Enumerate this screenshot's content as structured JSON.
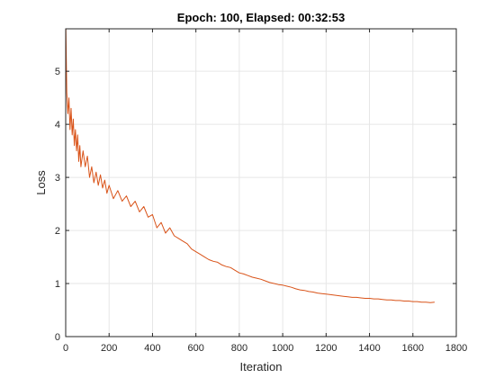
{
  "chart_data": {
    "type": "line",
    "title": "Epoch: 100, Elapsed: 00:32:53",
    "xlabel": "Iteration",
    "ylabel": "Loss",
    "xlim": [
      0,
      1800
    ],
    "ylim": [
      0,
      5.8
    ],
    "xticks": [
      0,
      200,
      400,
      600,
      800,
      1000,
      1200,
      1400,
      1600,
      1800
    ],
    "yticks": [
      0,
      1,
      2,
      3,
      4,
      5
    ],
    "grid": true,
    "series": [
      {
        "color": "#d95319",
        "x": [
          1,
          5,
          10,
          15,
          20,
          25,
          30,
          35,
          40,
          45,
          50,
          55,
          60,
          65,
          70,
          80,
          90,
          100,
          110,
          120,
          130,
          140,
          150,
          160,
          170,
          180,
          190,
          200,
          220,
          240,
          260,
          280,
          300,
          320,
          340,
          360,
          380,
          400,
          420,
          440,
          460,
          480,
          500,
          520,
          540,
          560,
          580,
          600,
          620,
          640,
          660,
          680,
          700,
          720,
          740,
          760,
          780,
          800,
          820,
          840,
          860,
          880,
          900,
          920,
          940,
          960,
          980,
          1000,
          1020,
          1040,
          1060,
          1080,
          1100,
          1120,
          1140,
          1160,
          1180,
          1200,
          1220,
          1240,
          1260,
          1280,
          1300,
          1320,
          1340,
          1360,
          1380,
          1400,
          1420,
          1440,
          1460,
          1480,
          1500,
          1520,
          1540,
          1560,
          1580,
          1600,
          1620,
          1640,
          1660,
          1680,
          1700
        ],
        "y": [
          5.8,
          4.6,
          4.2,
          4.5,
          3.9,
          4.3,
          3.8,
          4.1,
          3.6,
          3.9,
          3.5,
          3.8,
          3.3,
          3.6,
          3.2,
          3.5,
          3.2,
          3.4,
          3.0,
          3.2,
          2.9,
          3.1,
          2.85,
          3.05,
          2.8,
          2.95,
          2.7,
          2.85,
          2.6,
          2.75,
          2.55,
          2.65,
          2.45,
          2.55,
          2.35,
          2.45,
          2.25,
          2.3,
          2.05,
          2.15,
          1.95,
          2.05,
          1.9,
          1.85,
          1.8,
          1.75,
          1.65,
          1.6,
          1.55,
          1.5,
          1.45,
          1.42,
          1.4,
          1.35,
          1.32,
          1.3,
          1.25,
          1.2,
          1.18,
          1.15,
          1.12,
          1.1,
          1.08,
          1.05,
          1.02,
          1.0,
          0.98,
          0.97,
          0.95,
          0.93,
          0.9,
          0.88,
          0.87,
          0.85,
          0.84,
          0.82,
          0.81,
          0.8,
          0.79,
          0.78,
          0.77,
          0.76,
          0.75,
          0.74,
          0.74,
          0.73,
          0.72,
          0.72,
          0.71,
          0.71,
          0.7,
          0.69,
          0.69,
          0.68,
          0.68,
          0.67,
          0.67,
          0.66,
          0.66,
          0.65,
          0.65,
          0.64,
          0.65
        ]
      }
    ]
  }
}
